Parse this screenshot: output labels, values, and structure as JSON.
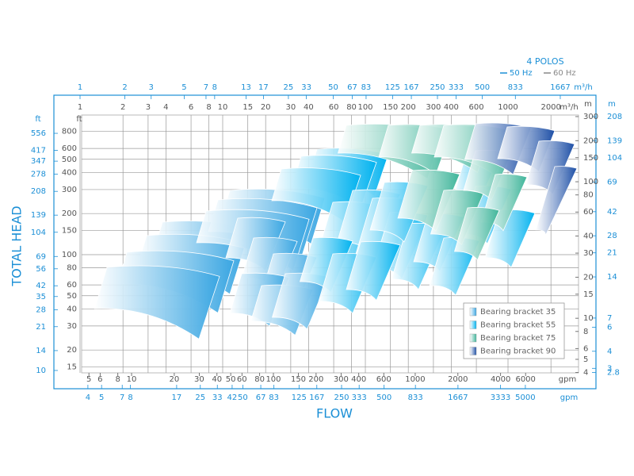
{
  "chart_data": {
    "type": "pump-coverage",
    "header": "4 POLOS",
    "frequencies": [
      {
        "name": "50 Hz",
        "color": "#1b8fd6"
      },
      {
        "name": "60 Hz",
        "color": "#888888"
      }
    ],
    "y_title": "TOTAL HEAD",
    "x_title": "FLOW",
    "log_scale": true,
    "grid": true,
    "legend_position": "lower-right",
    "legend": [
      {
        "name": "Bearing bracket 35",
        "color": "#3aa6e2"
      },
      {
        "name": "Bearing bracket 55",
        "color": "#00b2ef"
      },
      {
        "name": "Bearing bracket 75",
        "color": "#3fb59a"
      },
      {
        "name": "Bearing bracket 90",
        "color": "#1d4fa6"
      }
    ],
    "axes": {
      "top_outer": {
        "unit": "m³/h",
        "lim": [
          1,
          2237
        ],
        "ticks": [
          1,
          2,
          3,
          5,
          7,
          8,
          13,
          17,
          25,
          33,
          50,
          67,
          83,
          125,
          167,
          250,
          333,
          500,
          833,
          1667
        ]
      },
      "top_inner": {
        "unit": "m³/h",
        "lim": [
          1,
          3162
        ],
        "ticks": [
          1,
          2,
          3,
          4,
          6,
          8,
          10,
          15,
          20,
          30,
          40,
          60,
          80,
          100,
          150,
          200,
          300,
          400,
          600,
          1000,
          2000
        ]
      },
      "bottom_inner": {
        "unit": "gpm",
        "lim": [
          4.33,
          14360
        ],
        "ticks": [
          5,
          6,
          8,
          10,
          20,
          30,
          40,
          50,
          60,
          80,
          100,
          150,
          200,
          300,
          400,
          600,
          1000,
          2000,
          4000,
          6000
        ]
      },
      "bottom_outer": {
        "unit": "gpm",
        "lim": [
          3.52,
          12050
        ],
        "ticks": [
          4,
          5,
          7,
          8,
          17,
          25,
          33,
          42,
          50,
          67,
          83,
          125,
          167,
          250,
          333,
          500,
          833,
          1667,
          3333,
          5000
        ]
      },
      "left_outer": {
        "unit": "ft",
        "lim": [
          9.6,
          758
        ],
        "ticks": [
          556,
          417,
          347,
          278,
          208,
          139,
          104,
          69,
          56,
          42,
          35,
          28,
          21,
          14,
          10
        ]
      },
      "left_inner": {
        "unit": "ft",
        "lim": [
          13.6,
          1055
        ],
        "ticks": [
          800,
          600,
          500,
          400,
          300,
          200,
          150,
          100,
          80,
          60,
          50,
          40,
          30,
          20,
          15
        ]
      },
      "right_inner": {
        "unit": "m",
        "lim": [
          3.98,
          308
        ],
        "ticks": [
          300,
          200,
          150,
          100,
          80,
          60,
          40,
          30,
          20,
          15,
          10,
          8,
          6,
          5,
          4
        ]
      },
      "right_outer": {
        "unit": "m",
        "lim": [
          2.78,
          214
        ],
        "ticks": [
          208,
          139,
          104,
          69,
          42,
          28,
          21,
          14,
          7,
          6,
          4,
          3,
          2.8
        ]
      }
    }
  }
}
